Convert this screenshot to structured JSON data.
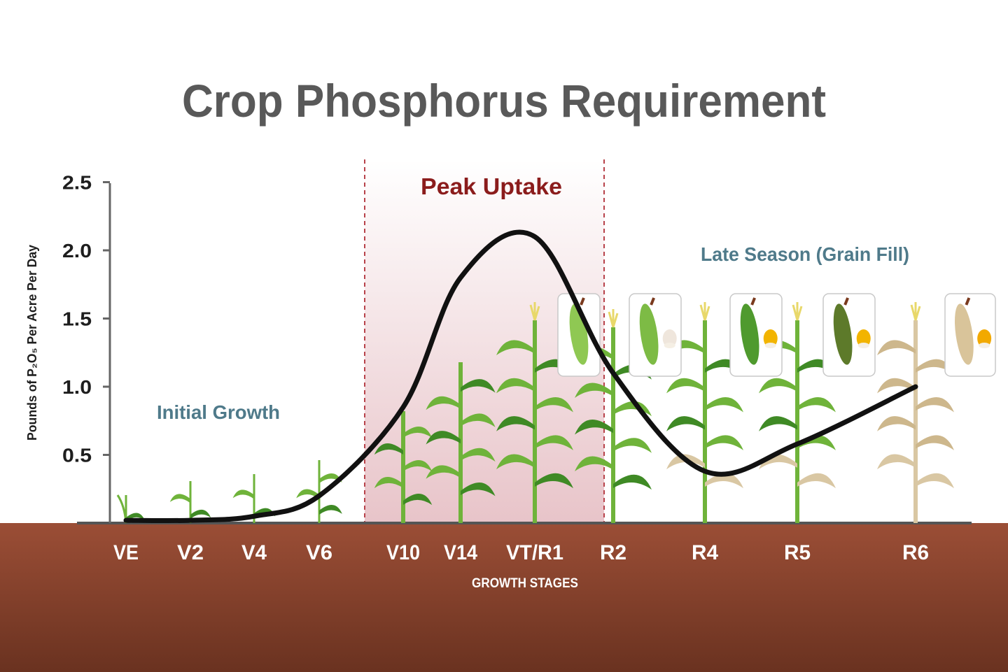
{
  "chart_data": {
    "type": "line",
    "title": "Crop Phosphorus Requirement",
    "ylabel": "Pounds of P₂O₅ Per Acre Per Day",
    "xlabel": "GROWTH STAGES",
    "ylim": [
      0,
      2.5
    ],
    "yticks": [
      "2.5",
      "2.0",
      "1.5",
      "1.0",
      "0.5"
    ],
    "ytick_values": [
      2.5,
      2.0,
      1.5,
      1.0,
      0.5
    ],
    "categories": [
      "VE",
      "V2",
      "V4",
      "V6",
      "V10",
      "V14",
      "VT/R1",
      "R2",
      "R4",
      "R5",
      "R6"
    ],
    "series": [
      {
        "values": [
          0.02,
          0.02,
          0.05,
          0.2,
          0.85,
          1.8,
          2.1,
          1.1,
          0.38,
          0.58,
          1.0
        ]
      }
    ],
    "annotations": {
      "initial": "Initial Growth",
      "peak": "Peak Uptake",
      "late": "Late Season (Grain Fill)"
    },
    "grid": false,
    "legend": "none"
  },
  "colors": {
    "soil": "#6e3520",
    "soil_light": "#8f4b33",
    "peak_band": "#ebc8cd",
    "peak_text": "#8b1c1c",
    "zone_text": "#4f7a8a",
    "curve": "#111111",
    "leaf": "#6fb33a",
    "leaf_dark": "#3f8a25",
    "leaf_dry": "#d9c7a3"
  }
}
